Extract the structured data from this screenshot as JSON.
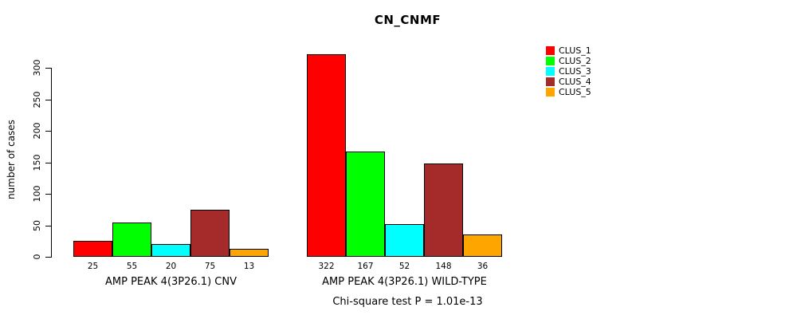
{
  "chart_data": {
    "type": "bar",
    "title": "CN_CNMF",
    "ylabel": "number of cases",
    "xlabel": "",
    "yticks": [
      0,
      50,
      100,
      150,
      200,
      250,
      300
    ],
    "ylim": [
      0,
      330
    ],
    "grid": false,
    "legend_position": "right",
    "series_names": [
      "CLUS_1",
      "CLUS_2",
      "CLUS_3",
      "CLUS_4",
      "CLUS_5"
    ],
    "colors": [
      "#ff0000",
      "#00ff00",
      "#00ffff",
      "#a52a2a",
      "#ffa500"
    ],
    "groups": [
      {
        "label": "AMP PEAK 4(3P26.1) CNV",
        "values": [
          25,
          55,
          20,
          75,
          13
        ]
      },
      {
        "label": "AMP PEAK 4(3P26.1) WILD-TYPE",
        "values": [
          322,
          167,
          52,
          148,
          36
        ]
      }
    ],
    "footnote": "Chi-square test P = 1.01e-13"
  }
}
